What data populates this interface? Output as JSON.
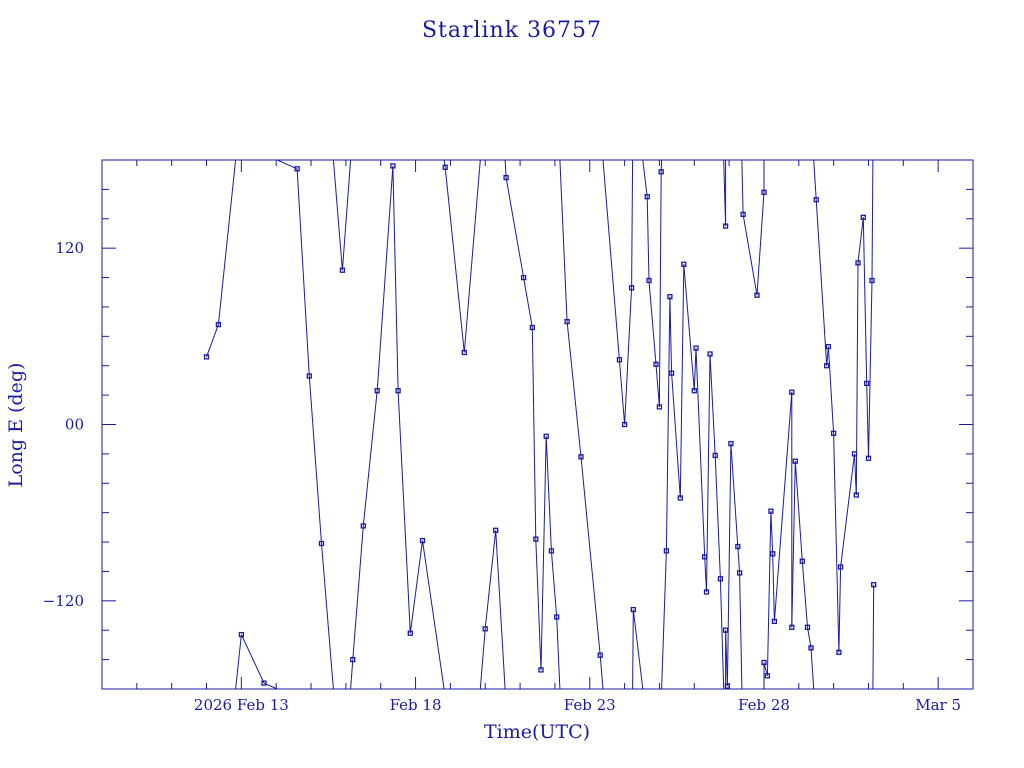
{
  "colors": {
    "ink": "#1a1aa6",
    "background": "#ffffff"
  },
  "chart_data": {
    "type": "line",
    "title": "Starlink 36757",
    "xlabel": "Time(UTC)",
    "ylabel": "Long E (deg)",
    "x_unit": "days since 2026-02-09 00:00 UTC",
    "xlim": [
      0.0,
      25.0
    ],
    "ylim": [
      -180,
      180
    ],
    "wrap": 360,
    "grid": false,
    "marker": "open-square",
    "x_ticks": [
      {
        "value": 4,
        "label": "2026 Feb 13"
      },
      {
        "value": 9,
        "label": "Feb 18"
      },
      {
        "value": 14,
        "label": "Feb 23"
      },
      {
        "value": 19,
        "label": "Feb 28"
      },
      {
        "value": 24,
        "label": "Mar  5"
      }
    ],
    "y_ticks": [
      {
        "value": 120,
        "label": "120"
      },
      {
        "value": 0,
        "label": "00"
      },
      {
        "value": -120,
        "label": "−120"
      }
    ],
    "series": [
      {
        "points": [
          [
            3.0,
            46
          ],
          [
            3.34,
            68
          ],
          [
            4.0,
            -143
          ],
          [
            4.65,
            -176
          ],
          [
            5.6,
            174
          ],
          [
            5.95,
            33
          ],
          [
            6.3,
            -81
          ],
          [
            6.9,
            105
          ],
          [
            7.2,
            -160
          ],
          [
            7.5,
            -69
          ],
          [
            7.9,
            23
          ],
          [
            8.35,
            176
          ],
          [
            8.5,
            23
          ],
          [
            8.85,
            -142
          ],
          [
            9.2,
            -79
          ],
          [
            9.85,
            175
          ],
          [
            10.4,
            49
          ],
          [
            11.0,
            -139
          ],
          [
            11.3,
            -72
          ],
          [
            11.6,
            168
          ],
          [
            12.1,
            100
          ],
          [
            12.35,
            66
          ],
          [
            12.45,
            -78
          ],
          [
            12.6,
            -167
          ],
          [
            12.75,
            -8
          ],
          [
            12.9,
            -86
          ],
          [
            13.05,
            -131
          ],
          [
            13.35,
            70
          ],
          [
            13.75,
            -22
          ],
          [
            14.3,
            -157
          ],
          [
            14.85,
            44
          ],
          [
            15.0,
            0
          ],
          [
            15.2,
            93
          ],
          [
            15.25,
            -126
          ],
          [
            15.65,
            155
          ],
          [
            15.7,
            98
          ],
          [
            15.9,
            41
          ],
          [
            16.0,
            12
          ],
          [
            16.05,
            172
          ],
          [
            16.2,
            -86
          ],
          [
            16.3,
            87
          ],
          [
            16.35,
            35
          ],
          [
            16.6,
            -50
          ],
          [
            16.7,
            109
          ],
          [
            17.0,
            23
          ],
          [
            17.05,
            52
          ],
          [
            17.3,
            -90
          ],
          [
            17.35,
            -114
          ],
          [
            17.45,
            48
          ],
          [
            17.6,
            -21
          ],
          [
            17.75,
            -105
          ],
          [
            17.9,
            135
          ],
          [
            17.9,
            -140
          ],
          [
            17.95,
            -178
          ],
          [
            18.05,
            -13
          ],
          [
            18.25,
            -83
          ],
          [
            18.3,
            -101
          ],
          [
            18.4,
            143
          ],
          [
            18.8,
            88
          ],
          [
            19.0,
            158
          ],
          [
            19.0,
            -162
          ],
          [
            19.1,
            -171
          ],
          [
            19.2,
            -59
          ],
          [
            19.25,
            -88
          ],
          [
            19.3,
            -134
          ],
          [
            19.8,
            22
          ],
          [
            19.8,
            -138
          ],
          [
            19.9,
            -25
          ],
          [
            20.1,
            -93
          ],
          [
            20.25,
            -138
          ],
          [
            20.35,
            -152
          ],
          [
            20.5,
            153
          ],
          [
            20.8,
            40
          ],
          [
            20.85,
            53
          ],
          [
            21.0,
            -6
          ],
          [
            21.15,
            -155
          ],
          [
            21.2,
            -97
          ],
          [
            21.6,
            -20
          ],
          [
            21.65,
            -48
          ],
          [
            21.7,
            110
          ],
          [
            21.85,
            141
          ],
          [
            21.95,
            28
          ],
          [
            22.0,
            -23
          ],
          [
            22.1,
            98
          ],
          [
            22.15,
            -109
          ]
        ]
      }
    ]
  }
}
